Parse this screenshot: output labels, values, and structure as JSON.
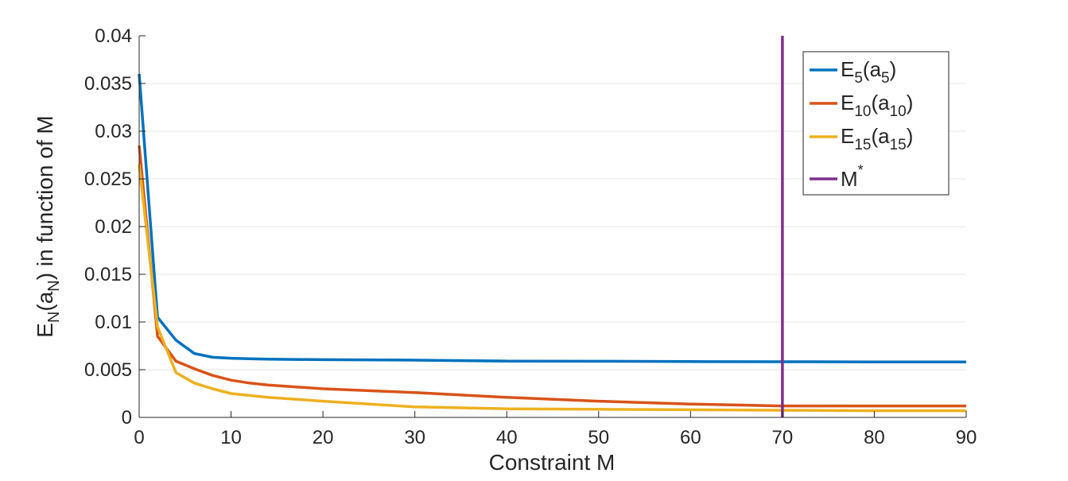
{
  "chart_data": {
    "type": "line",
    "xlabel": "Constraint M",
    "ylabel_parts": {
      "main": "E",
      "sub": "N",
      "open": "(a",
      "sub2": "N",
      "close": ") in function of M"
    },
    "xlim": [
      0,
      90
    ],
    "ylim": [
      0,
      0.04
    ],
    "xticks": [
      "0",
      "10",
      "20",
      "30",
      "40",
      "50",
      "60",
      "70",
      "80",
      "90"
    ],
    "yticks": [
      "0",
      "0.005",
      "0.01",
      "0.015",
      "0.02",
      "0.025",
      "0.03",
      "0.035",
      "0.04"
    ],
    "grid": "horizontal",
    "legend_position": "top-right",
    "series": [
      {
        "name": "E5(a5)",
        "legend": {
          "main": "E",
          "sub": "5",
          "open": "(a",
          "sub2": "5",
          "close": ")"
        },
        "color": "#0072BD",
        "x": [
          0,
          2,
          4,
          6,
          8,
          10,
          12,
          14,
          20,
          30,
          40,
          50,
          60,
          70,
          80,
          90
        ],
        "y": [
          0.036,
          0.0105,
          0.0081,
          0.0067,
          0.0063,
          0.0062,
          0.00615,
          0.0061,
          0.00605,
          0.006,
          0.0059,
          0.00588,
          0.00585,
          0.00583,
          0.00582,
          0.00582
        ]
      },
      {
        "name": "E10(a10)",
        "legend": {
          "main": "E",
          "sub": "10",
          "open": "(a",
          "sub2": "10",
          "close": ")"
        },
        "color": "#D95319",
        "x": [
          0,
          2,
          4,
          6,
          8,
          10,
          12,
          14,
          20,
          30,
          40,
          50,
          60,
          70,
          80,
          90
        ],
        "y": [
          0.0285,
          0.0085,
          0.0059,
          0.0051,
          0.0044,
          0.0039,
          0.0036,
          0.0034,
          0.003,
          0.0026,
          0.0021,
          0.0017,
          0.0014,
          0.0012,
          0.0012,
          0.0012
        ]
      },
      {
        "name": "E15(a15)",
        "legend": {
          "main": "E",
          "sub": "15",
          "open": "(a",
          "sub2": "15",
          "close": ")"
        },
        "color": "#EDB120",
        "x": [
          0,
          2,
          4,
          6,
          8,
          10,
          12,
          14,
          20,
          30,
          40,
          50,
          60,
          70,
          80,
          90
        ],
        "y": [
          0.0265,
          0.0095,
          0.0047,
          0.0036,
          0.003,
          0.0025,
          0.0023,
          0.0021,
          0.0017,
          0.0011,
          0.0009,
          0.00085,
          0.0008,
          0.00075,
          0.0007,
          0.0007
        ]
      }
    ],
    "vline": {
      "name": "M*",
      "legend": {
        "main": "M",
        "sup": "*"
      },
      "x": 70,
      "color": "#7E2F8E"
    }
  }
}
